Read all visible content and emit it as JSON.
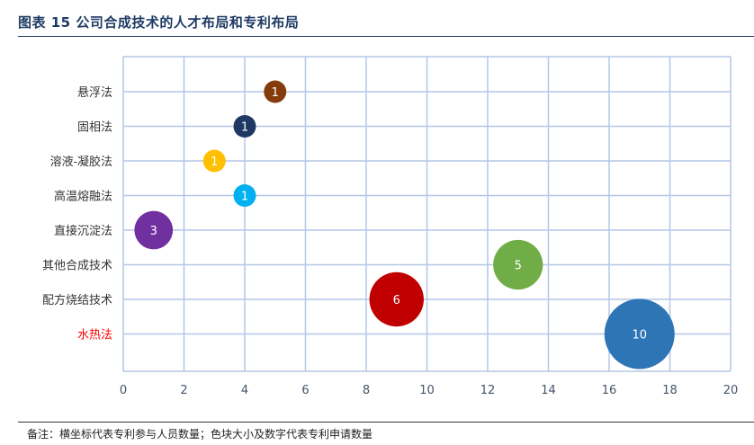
{
  "figure": {
    "title": "图表 15 公司合成技术的人才布局和专利布局",
    "note": "备注：横坐标代表专利参与人员数量；色块大小及数字代表专利申请数量"
  },
  "chart_data": {
    "type": "bubble",
    "xlim": [
      0,
      20
    ],
    "x_ticks": [
      0,
      2,
      4,
      6,
      8,
      10,
      12,
      14,
      16,
      18,
      20
    ],
    "categories": [
      "悬浮法",
      "固相法",
      "溶液-凝胶法",
      "高温熔融法",
      "直接沉淀法",
      "其他合成技术",
      "配方烧结技术",
      "水热法"
    ],
    "highlight_category": "水热法",
    "grid": true,
    "points": [
      {
        "category": "悬浮法",
        "x": 5,
        "size": 1,
        "color": "#843c0c"
      },
      {
        "category": "固相法",
        "x": 4,
        "size": 1,
        "color": "#1f3864"
      },
      {
        "category": "溶液-凝胶法",
        "x": 3,
        "size": 1,
        "color": "#ffc000"
      },
      {
        "category": "高温熔融法",
        "x": 4,
        "size": 1,
        "color": "#00b0f0"
      },
      {
        "category": "直接沉淀法",
        "x": 1,
        "size": 3,
        "color": "#7030a0"
      },
      {
        "category": "其他合成技术",
        "x": 13,
        "size": 5,
        "color": "#70ad47"
      },
      {
        "category": "配方烧结技术",
        "x": 9,
        "size": 6,
        "color": "#c00000"
      },
      {
        "category": "水热法",
        "x": 17,
        "size": 10,
        "color": "#2e75b6"
      }
    ]
  },
  "colors": {
    "title": "#1f3b64",
    "grid": "#b4c7e7",
    "axis_text": "#44546a",
    "highlight": "#ff0000",
    "category_text": "#333333"
  }
}
